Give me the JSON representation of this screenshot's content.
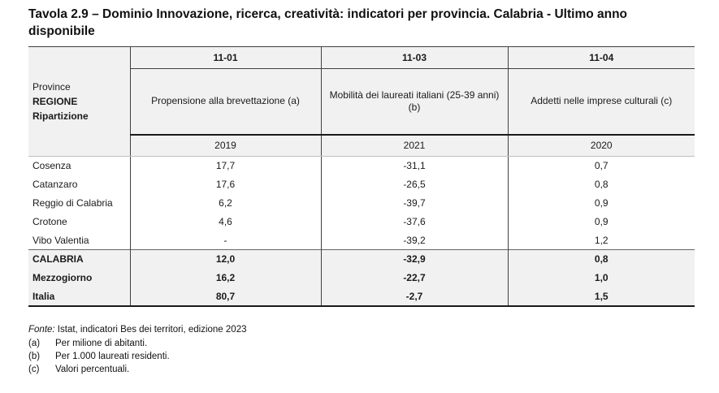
{
  "title": "Tavola 2.9 – Dominio Innovazione, ricerca, creatività: indicatori per provincia. Calabria - Ultimo anno disponibile",
  "colors": {
    "header_bg": "#f1f1f1",
    "border_dark": "#404040",
    "text": "#1a1a1a"
  },
  "table": {
    "corner": {
      "line1": "Province",
      "line2": "REGIONE",
      "line3": "Ripartizione"
    },
    "columns": [
      {
        "code": "11-01",
        "indicator": "Propensione alla brevettazione (a)",
        "indicator_note": "",
        "year": "2019"
      },
      {
        "code": "11-03",
        "indicator": "Mobilità dei laureati italiani (25-39 anni)",
        "indicator_note": "(b)",
        "year": "2021"
      },
      {
        "code": "11-04",
        "indicator": "Addetti nelle imprese culturali (c)",
        "indicator_note": "",
        "year": "2020"
      }
    ],
    "rows": [
      {
        "label": "Cosenza",
        "values": [
          "17,7",
          "-31,1",
          "0,7"
        ]
      },
      {
        "label": "Catanzaro",
        "values": [
          "17,6",
          "-26,5",
          "0,8"
        ]
      },
      {
        "label": "Reggio di Calabria",
        "values": [
          "6,2",
          "-39,7",
          "0,9"
        ]
      },
      {
        "label": "Crotone",
        "values": [
          "4,6",
          "-37,6",
          "0,9"
        ]
      },
      {
        "label": "Vibo Valentia",
        "values": [
          "-",
          "-39,2",
          "1,2"
        ]
      }
    ],
    "summary_rows": [
      {
        "label": "CALABRIA",
        "values": [
          "12,0",
          "-32,9",
          "0,8"
        ]
      },
      {
        "label": "Mezzogiorno",
        "values": [
          "16,2",
          "-22,7",
          "1,0"
        ]
      },
      {
        "label": "Italia",
        "values": [
          "80,7",
          "-2,7",
          "1,5"
        ]
      }
    ]
  },
  "footnotes": {
    "source_label": "Fonte:",
    "source_text": " Istat, indicatori Bes dei territori, edizione 2023",
    "notes": [
      {
        "key": "(a)",
        "text": "Per milione di abitanti."
      },
      {
        "key": "(b)",
        "text": "Per 1.000 laureati residenti."
      },
      {
        "key": "(c)",
        "text": "Valori percentuali."
      }
    ]
  }
}
